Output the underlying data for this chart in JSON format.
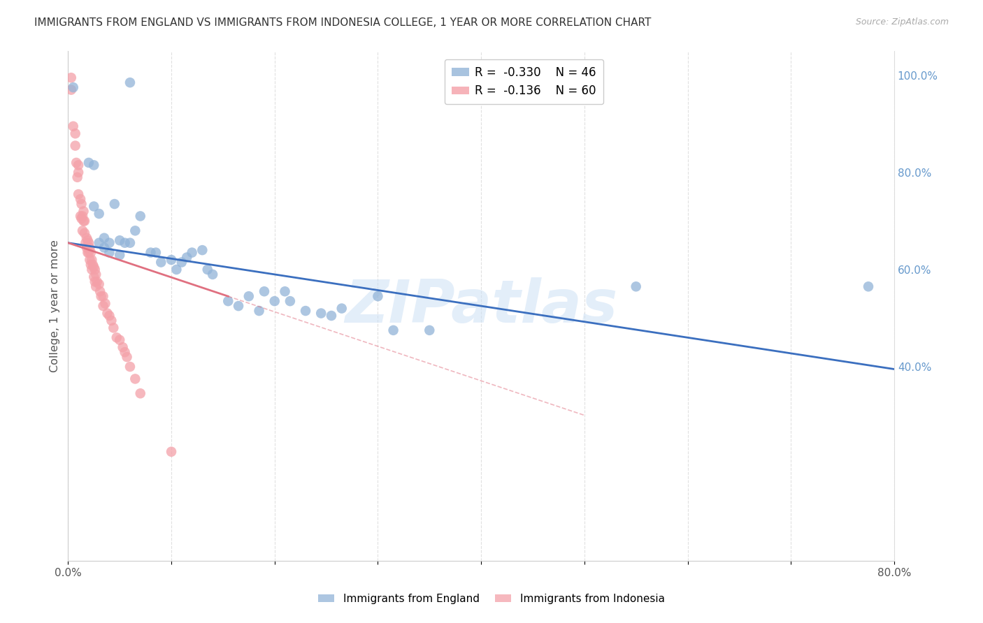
{
  "title": "IMMIGRANTS FROM ENGLAND VS IMMIGRANTS FROM INDONESIA COLLEGE, 1 YEAR OR MORE CORRELATION CHART",
  "source": "Source: ZipAtlas.com",
  "ylabel": "College, 1 year or more",
  "watermark": "ZIPatlas",
  "legend_england": "Immigrants from England",
  "legend_indonesia": "Immigrants from Indonesia",
  "R_england": -0.33,
  "N_england": 46,
  "R_indonesia": -0.136,
  "N_indonesia": 60,
  "england_color": "#92B4D8",
  "indonesia_color": "#F4A0A8",
  "england_line_color": "#3B6FBF",
  "indonesia_line_color": "#E07080",
  "xmin": 0.0,
  "xmax": 0.8,
  "ymin": 0.0,
  "ymax": 1.05,
  "right_yticks": [
    0.4,
    0.6,
    0.8,
    1.0
  ],
  "right_yticklabels": [
    "40.0%",
    "60.0%",
    "80.0%",
    "100.0%"
  ],
  "xticks": [
    0.0,
    0.1,
    0.2,
    0.3,
    0.4,
    0.5,
    0.6,
    0.7,
    0.8
  ],
  "xticklabels": [
    "0.0%",
    "",
    "",
    "",
    "",
    "",
    "",
    "",
    "80.0%"
  ],
  "eng_line_x0": 0.0,
  "eng_line_y0": 0.655,
  "eng_line_x1": 0.8,
  "eng_line_y1": 0.395,
  "ind_line_x0": 0.0,
  "ind_line_y0": 0.655,
  "ind_line_x1": 0.5,
  "ind_line_y1": 0.3,
  "england_x": [
    0.005,
    0.06,
    0.02,
    0.025,
    0.025,
    0.03,
    0.03,
    0.035,
    0.035,
    0.04,
    0.04,
    0.045,
    0.05,
    0.05,
    0.055,
    0.06,
    0.065,
    0.07,
    0.08,
    0.085,
    0.09,
    0.1,
    0.105,
    0.11,
    0.115,
    0.12,
    0.13,
    0.135,
    0.14,
    0.155,
    0.165,
    0.175,
    0.185,
    0.19,
    0.2,
    0.21,
    0.215,
    0.23,
    0.245,
    0.255,
    0.265,
    0.3,
    0.315,
    0.35,
    0.55,
    0.775
  ],
  "england_y": [
    0.975,
    0.985,
    0.82,
    0.815,
    0.73,
    0.715,
    0.655,
    0.665,
    0.645,
    0.655,
    0.635,
    0.735,
    0.66,
    0.63,
    0.655,
    0.655,
    0.68,
    0.71,
    0.635,
    0.635,
    0.615,
    0.62,
    0.6,
    0.615,
    0.625,
    0.635,
    0.64,
    0.6,
    0.59,
    0.535,
    0.525,
    0.545,
    0.515,
    0.555,
    0.535,
    0.555,
    0.535,
    0.515,
    0.51,
    0.505,
    0.52,
    0.545,
    0.475,
    0.475,
    0.565,
    0.565
  ],
  "indonesia_x": [
    0.003,
    0.003,
    0.005,
    0.007,
    0.007,
    0.008,
    0.009,
    0.01,
    0.01,
    0.01,
    0.012,
    0.012,
    0.013,
    0.013,
    0.014,
    0.014,
    0.015,
    0.015,
    0.016,
    0.016,
    0.017,
    0.018,
    0.018,
    0.019,
    0.019,
    0.02,
    0.02,
    0.021,
    0.021,
    0.022,
    0.022,
    0.023,
    0.023,
    0.024,
    0.025,
    0.025,
    0.026,
    0.026,
    0.027,
    0.027,
    0.028,
    0.03,
    0.031,
    0.032,
    0.034,
    0.034,
    0.036,
    0.038,
    0.04,
    0.042,
    0.044,
    0.047,
    0.05,
    0.053,
    0.055,
    0.057,
    0.06,
    0.065,
    0.07,
    0.1
  ],
  "indonesia_y": [
    0.995,
    0.97,
    0.895,
    0.88,
    0.855,
    0.82,
    0.79,
    0.815,
    0.8,
    0.755,
    0.745,
    0.71,
    0.735,
    0.705,
    0.71,
    0.68,
    0.72,
    0.7,
    0.7,
    0.675,
    0.655,
    0.665,
    0.645,
    0.66,
    0.635,
    0.655,
    0.635,
    0.645,
    0.62,
    0.635,
    0.61,
    0.62,
    0.6,
    0.61,
    0.605,
    0.585,
    0.6,
    0.575,
    0.59,
    0.565,
    0.575,
    0.57,
    0.555,
    0.545,
    0.545,
    0.525,
    0.53,
    0.51,
    0.505,
    0.495,
    0.48,
    0.46,
    0.455,
    0.44,
    0.43,
    0.42,
    0.4,
    0.375,
    0.345,
    0.225
  ]
}
